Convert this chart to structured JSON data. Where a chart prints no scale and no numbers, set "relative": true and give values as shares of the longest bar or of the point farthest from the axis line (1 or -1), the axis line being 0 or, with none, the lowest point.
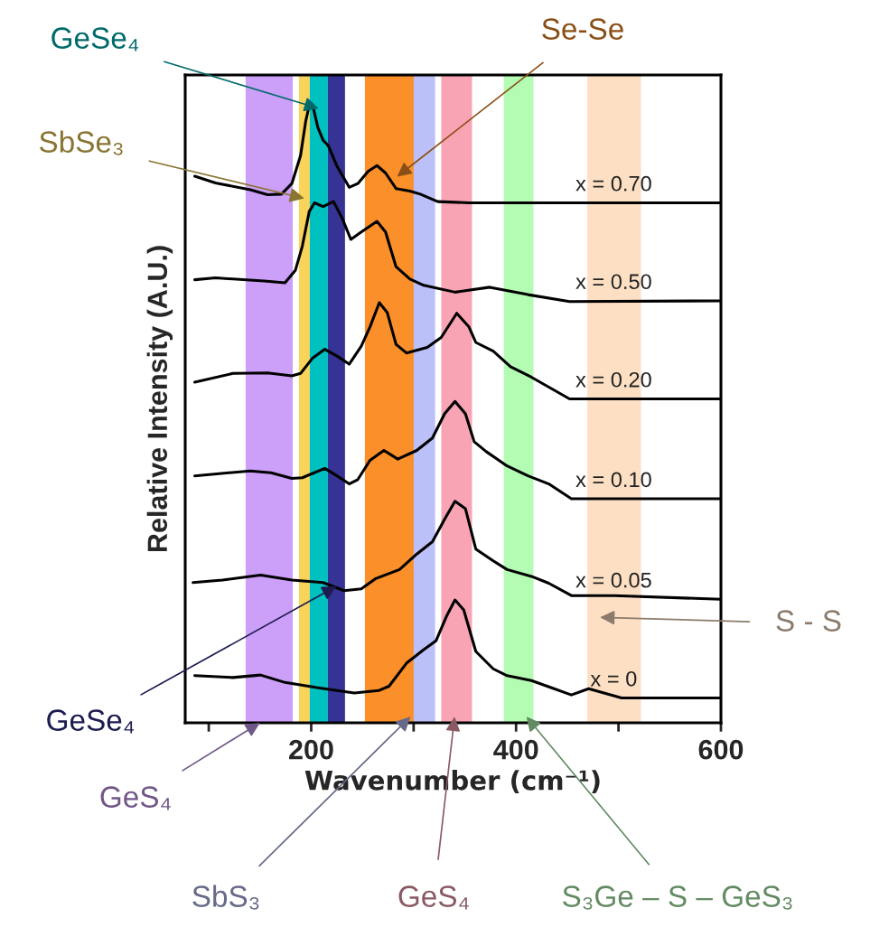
{
  "chart_data": {
    "type": "line",
    "relative": true,
    "xlabel": "Wavenumber (cm⁻¹)",
    "ylabel": "Relative Intensity (A.U.)",
    "xlim": [
      77,
      600
    ],
    "xticks": [
      {
        "value": 100,
        "label": null
      },
      200,
      {
        "value": 300,
        "label": null
      },
      400,
      {
        "value": 500,
        "label": null
      },
      600
    ],
    "line_style": "solid",
    "series": [
      {
        "name": "x = 0.70",
        "color": "#000000",
        "x": [
          86.3,
          106.6,
          140.5,
          157.4,
          171,
          181.1,
          189.6,
          194.7,
          198.8,
          201.5,
          206.6,
          211.6,
          216.7,
          225.2,
          237.1,
          245.5,
          255.7,
          264.2,
          272.6,
          282.8,
          296.4,
          306.5,
          323.5,
          354,
          445.5,
          600
        ],
        "values": [
          0.881,
          0.87,
          0.859,
          0.851,
          0.852,
          0.869,
          0.914,
          0.97,
          1.0,
          0.995,
          0.959,
          0.939,
          0.93,
          0.897,
          0.863,
          0.869,
          0.889,
          0.898,
          0.886,
          0.861,
          0.857,
          0.852,
          0.84,
          0.838,
          0.838,
          0.838
        ]
      },
      {
        "name": "x = 0.50",
        "color": "#000000",
        "x": [
          86.3,
          106.6,
          154,
          174.4,
          184.5,
          191.3,
          198.1,
          203.2,
          211.6,
          221.8,
          230.3,
          238.7,
          248.9,
          264.2,
          272.6,
          282.8,
          296.4,
          309.9,
          340.4,
          374.3,
          411.6,
          452.2,
          600
        ],
        "values": [
          0.714,
          0.717,
          0.712,
          0.709,
          0.729,
          0.768,
          0.824,
          0.838,
          0.832,
          0.84,
          0.813,
          0.779,
          0.791,
          0.808,
          0.791,
          0.735,
          0.715,
          0.705,
          0.694,
          0.702,
          0.69,
          0.679,
          0.68
        ]
      },
      {
        "name": "x = 0.20",
        "color": "#000000",
        "x": [
          86.3,
          123.5,
          157.4,
          181.1,
          189.6,
          201.5,
          213.3,
          225.2,
          237.1,
          248.9,
          257.4,
          266.5,
          274.3,
          282.8,
          293,
          313.3,
          326.9,
          342.1,
          354,
          360.7,
          377.7,
          394.6,
          415,
          452.2,
          600
        ],
        "values": [
          0.549,
          0.563,
          0.564,
          0.559,
          0.563,
          0.588,
          0.602,
          0.591,
          0.578,
          0.607,
          0.638,
          0.677,
          0.661,
          0.61,
          0.596,
          0.605,
          0.621,
          0.66,
          0.638,
          0.613,
          0.599,
          0.574,
          0.557,
          0.522,
          0.522
        ]
      },
      {
        "name": "x = 0.10",
        "color": "#000000",
        "x": [
          86.3,
          140.5,
          160.8,
          181.1,
          191.3,
          213.3,
          225.2,
          237.1,
          245.5,
          257.4,
          271,
          284.5,
          303.1,
          318.4,
          330.2,
          340.4,
          350.6,
          359.1,
          370.9,
          391.2,
          411.6,
          431.9,
          454,
          600
        ],
        "values": [
          0.398,
          0.406,
          0.403,
          0.394,
          0.395,
          0.41,
          0.398,
          0.385,
          0.392,
          0.423,
          0.439,
          0.425,
          0.439,
          0.459,
          0.498,
          0.518,
          0.498,
          0.453,
          0.437,
          0.414,
          0.398,
          0.385,
          0.361,
          0.361
        ]
      },
      {
        "name": "x = 0.05",
        "color": "#000000",
        "x": [
          84.6,
          113.4,
          150.6,
          181.1,
          211.6,
          232,
          248.9,
          262.5,
          286.2,
          303.1,
          318.4,
          330.2,
          340.4,
          350.6,
          360.7,
          377.7,
          391.2,
          415,
          431.9,
          454,
          496.3,
          600
        ],
        "values": [
          0.226,
          0.23,
          0.238,
          0.23,
          0.226,
          0.213,
          0.216,
          0.232,
          0.247,
          0.272,
          0.292,
          0.328,
          0.357,
          0.345,
          0.28,
          0.261,
          0.247,
          0.236,
          0.225,
          0.205,
          0.205,
          0.199
        ]
      },
      {
        "name": "x = 0",
        "color": "#000000",
        "x": [
          86.3,
          123.5,
          150.6,
          174.4,
          208.2,
          242.1,
          265.9,
          276,
          293,
          309.9,
          321.8,
          331.9,
          340.4,
          348.9,
          360.7,
          377.7,
          391.2,
          415,
          435.3,
          454,
          470.9,
          503.1,
          600
        ],
        "values": [
          0.076,
          0.073,
          0.077,
          0.065,
          0.056,
          0.048,
          0.052,
          0.059,
          0.096,
          0.118,
          0.132,
          0.171,
          0.198,
          0.182,
          0.115,
          0.087,
          0.076,
          0.068,
          0.056,
          0.045,
          0.055,
          0.04,
          0.04
        ]
      }
    ],
    "bands": [
      {
        "axis": "x",
        "from": 188,
        "to": 198.6,
        "label": "SbSe₃",
        "color": "#f9d35a"
      },
      {
        "axis": "x",
        "from": 198.6,
        "to": 216.3,
        "label": "GeSe₄",
        "color": "#00c0c0"
      },
      {
        "axis": "x",
        "from": 216.3,
        "to": 233,
        "label": "GeSe₄",
        "color": "#353393"
      },
      {
        "axis": "x",
        "from": 252.4,
        "to": 315,
        "label": "Se-Se",
        "color": "#fb8f2a"
      },
      {
        "axis": "x",
        "from": 327,
        "to": 357,
        "label": "GeS₄",
        "color": "#f9a4b4"
      },
      {
        "axis": "x",
        "from": 388,
        "to": 417,
        "label": "S₃Ge – S – GeS₃",
        "color": "#b4fcb4"
      },
      {
        "axis": "x",
        "from": 136,
        "to": 182,
        "label": "GeS₄",
        "color": "#cc9ff8"
      },
      {
        "axis": "x",
        "from": 300,
        "to": 321,
        "label": "SbS₃",
        "color": "#bcc0f8"
      },
      {
        "axis": "x",
        "from": 469.5,
        "to": 522,
        "label": "S - S",
        "color": "#fde0c4"
      }
    ]
  }
}
